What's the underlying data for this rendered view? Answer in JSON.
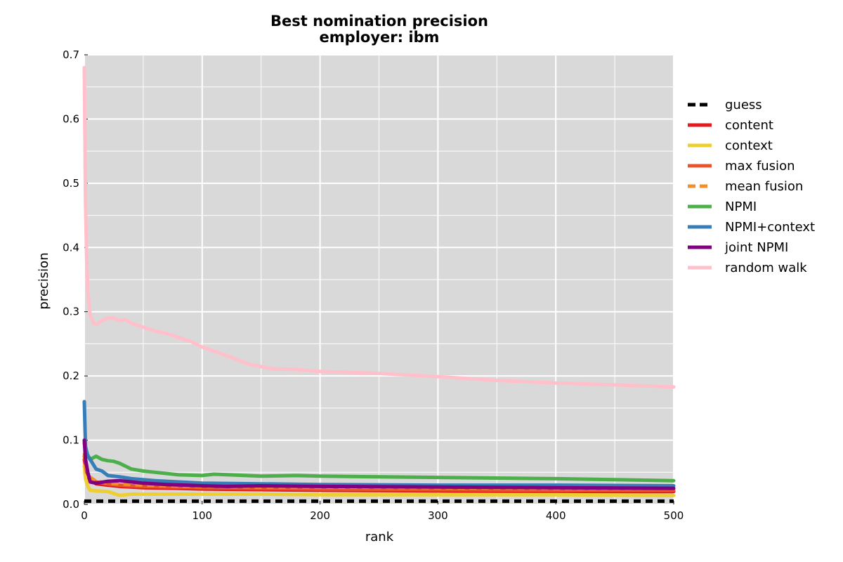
{
  "chart_data": {
    "type": "line",
    "title": "Best nomination precision",
    "subtitle": "employer: ibm",
    "xlabel": "rank",
    "ylabel": "precision",
    "xlim": [
      0,
      500
    ],
    "ylim": [
      0.0,
      0.7
    ],
    "x_ticks": [
      "0",
      "100",
      "200",
      "300",
      "400",
      "500"
    ],
    "y_ticks": [
      "0.0",
      "0.1",
      "0.2",
      "0.3",
      "0.4",
      "0.5",
      "0.6",
      "0.7"
    ],
    "grid": true,
    "background": "#d9d9d9",
    "legend_position": "right outside",
    "series": [
      {
        "name": "guess",
        "color": "#000000",
        "dash": true,
        "x": [
          0,
          500
        ],
        "y": [
          0.005,
          0.005
        ]
      },
      {
        "name": "content",
        "color": "#e41a1c",
        "dash": false,
        "x": [
          0,
          2,
          5,
          10,
          20,
          30,
          50,
          80,
          100,
          150,
          200,
          300,
          400,
          500
        ],
        "y": [
          0.07,
          0.045,
          0.038,
          0.032,
          0.03,
          0.028,
          0.026,
          0.025,
          0.024,
          0.023,
          0.022,
          0.021,
          0.02,
          0.02
        ]
      },
      {
        "name": "context",
        "color": "#eecf32",
        "dash": false,
        "x": [
          0,
          1,
          3,
          5,
          10,
          20,
          30,
          40,
          60,
          100,
          150,
          200,
          300,
          400,
          500
        ],
        "y": [
          0.06,
          0.04,
          0.028,
          0.022,
          0.021,
          0.02,
          0.014,
          0.016,
          0.016,
          0.016,
          0.016,
          0.015,
          0.015,
          0.015,
          0.014
        ]
      },
      {
        "name": "max fusion",
        "color": "#e8542b",
        "dash": false,
        "x": [
          0,
          2,
          5,
          10,
          20,
          30,
          50,
          100,
          150,
          200,
          300,
          400,
          500
        ],
        "y": [
          0.075,
          0.05,
          0.04,
          0.035,
          0.032,
          0.03,
          0.028,
          0.026,
          0.025,
          0.024,
          0.023,
          0.022,
          0.022
        ]
      },
      {
        "name": "mean fusion",
        "color": "#f28e2b",
        "dash": true,
        "x": [
          0,
          2,
          5,
          10,
          20,
          30,
          50,
          100,
          150,
          200,
          300,
          400,
          500
        ],
        "y": [
          0.08,
          0.055,
          0.042,
          0.036,
          0.033,
          0.032,
          0.03,
          0.028,
          0.027,
          0.027,
          0.026,
          0.025,
          0.025
        ]
      },
      {
        "name": "NPMI",
        "color": "#4daf4a",
        "dash": false,
        "x": [
          0,
          2,
          5,
          10,
          15,
          20,
          25,
          30,
          40,
          50,
          60,
          80,
          100,
          110,
          150,
          180,
          200,
          300,
          400,
          500
        ],
        "y": [
          0.095,
          0.08,
          0.07,
          0.075,
          0.07,
          0.068,
          0.067,
          0.064,
          0.055,
          0.052,
          0.05,
          0.046,
          0.045,
          0.047,
          0.044,
          0.045,
          0.044,
          0.042,
          0.04,
          0.037
        ]
      },
      {
        "name": "NPMI+context",
        "color": "#377eb8",
        "dash": false,
        "x": [
          0,
          1,
          3,
          5,
          10,
          15,
          20,
          30,
          40,
          60,
          80,
          100,
          150,
          200,
          300,
          400,
          500
        ],
        "y": [
          0.16,
          0.09,
          0.075,
          0.07,
          0.055,
          0.052,
          0.045,
          0.043,
          0.04,
          0.037,
          0.035,
          0.033,
          0.032,
          0.031,
          0.03,
          0.03,
          0.029
        ]
      },
      {
        "name": "joint NPMI",
        "color": "#800080",
        "dash": false,
        "x": [
          0,
          1,
          3,
          5,
          10,
          20,
          30,
          40,
          50,
          70,
          100,
          120,
          150,
          200,
          300,
          400,
          500
        ],
        "y": [
          0.1,
          0.07,
          0.05,
          0.035,
          0.033,
          0.036,
          0.037,
          0.035,
          0.033,
          0.031,
          0.029,
          0.028,
          0.029,
          0.028,
          0.027,
          0.026,
          0.025
        ]
      },
      {
        "name": "random walk",
        "color": "#ffc0cb",
        "dash": false,
        "x": [
          0,
          1,
          2,
          3,
          5,
          8,
          10,
          15,
          20,
          25,
          30,
          35,
          40,
          50,
          60,
          70,
          80,
          90,
          100,
          120,
          140,
          160,
          180,
          200,
          250,
          300,
          350,
          400,
          450,
          500
        ],
        "y": [
          0.68,
          0.47,
          0.38,
          0.33,
          0.295,
          0.282,
          0.28,
          0.286,
          0.29,
          0.29,
          0.286,
          0.288,
          0.282,
          0.276,
          0.27,
          0.266,
          0.26,
          0.254,
          0.245,
          0.232,
          0.218,
          0.211,
          0.21,
          0.207,
          0.204,
          0.199,
          0.193,
          0.189,
          0.186,
          0.183
        ]
      }
    ]
  }
}
